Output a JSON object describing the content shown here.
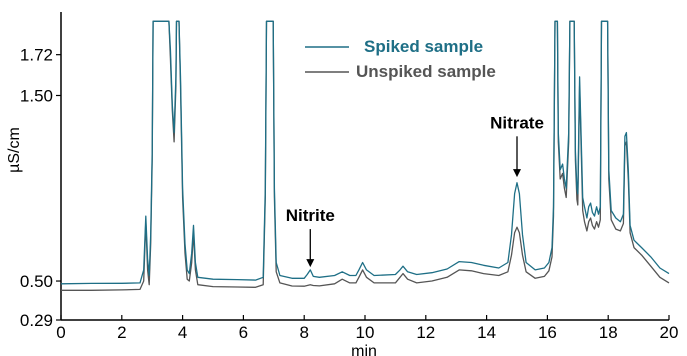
{
  "chart_data": {
    "type": "line",
    "title": "",
    "xlabel": "min",
    "ylabel": "µS/cm",
    "xlim": [
      0,
      20
    ],
    "ylim": [
      0.29,
      1.95
    ],
    "x_ticks": [
      "0",
      "2",
      "4",
      "6",
      "8",
      "10",
      "12",
      "14",
      "16",
      "18",
      "20"
    ],
    "y_ticks": [
      {
        "value": 0.29,
        "label": "0.29"
      },
      {
        "value": 0.5,
        "label": "0.50"
      },
      {
        "value": 1.5,
        "label": "1.50"
      },
      {
        "value": 1.72,
        "label": "1.72"
      }
    ],
    "grid": false,
    "legend_position": "top-center",
    "series": [
      {
        "name": "Spiked sample",
        "color": "#1e6f86",
        "points": [
          [
            0.0,
            0.485
          ],
          [
            1.0,
            0.487
          ],
          [
            2.0,
            0.488
          ],
          [
            2.6,
            0.49
          ],
          [
            2.72,
            0.56
          ],
          [
            2.79,
            0.85
          ],
          [
            2.85,
            0.62
          ],
          [
            2.9,
            0.53
          ],
          [
            2.95,
            0.75
          ],
          [
            3.0,
            1.2
          ],
          [
            3.03,
            1.9
          ],
          [
            3.55,
            1.9
          ],
          [
            3.6,
            1.75
          ],
          [
            3.66,
            1.45
          ],
          [
            3.72,
            1.3
          ],
          [
            3.78,
            1.6
          ],
          [
            3.8,
            1.9
          ],
          [
            3.88,
            1.9
          ],
          [
            3.93,
            1.6
          ],
          [
            4.0,
            1.0
          ],
          [
            4.08,
            0.7
          ],
          [
            4.15,
            0.56
          ],
          [
            4.22,
            0.54
          ],
          [
            4.3,
            0.65
          ],
          [
            4.36,
            0.8
          ],
          [
            4.42,
            0.6
          ],
          [
            4.5,
            0.52
          ],
          [
            5.0,
            0.51
          ],
          [
            5.8,
            0.508
          ],
          [
            6.4,
            0.505
          ],
          [
            6.65,
            0.52
          ],
          [
            6.72,
            1.0
          ],
          [
            6.76,
            1.9
          ],
          [
            6.98,
            1.9
          ],
          [
            7.02,
            1.0
          ],
          [
            7.08,
            0.6
          ],
          [
            7.2,
            0.53
          ],
          [
            7.6,
            0.515
          ],
          [
            8.0,
            0.515
          ],
          [
            8.1,
            0.535
          ],
          [
            8.2,
            0.56
          ],
          [
            8.3,
            0.525
          ],
          [
            8.5,
            0.52
          ],
          [
            9.0,
            0.53
          ],
          [
            9.25,
            0.55
          ],
          [
            9.5,
            0.53
          ],
          [
            9.7,
            0.53
          ],
          [
            9.8,
            0.56
          ],
          [
            9.92,
            0.6
          ],
          [
            10.05,
            0.56
          ],
          [
            10.3,
            0.53
          ],
          [
            11.0,
            0.535
          ],
          [
            11.15,
            0.56
          ],
          [
            11.25,
            0.58
          ],
          [
            11.4,
            0.55
          ],
          [
            11.7,
            0.535
          ],
          [
            12.2,
            0.545
          ],
          [
            12.7,
            0.565
          ],
          [
            13.1,
            0.605
          ],
          [
            13.5,
            0.6
          ],
          [
            13.9,
            0.585
          ],
          [
            14.4,
            0.57
          ],
          [
            14.7,
            0.6
          ],
          [
            14.82,
            0.75
          ],
          [
            14.92,
            0.97
          ],
          [
            15.0,
            1.03
          ],
          [
            15.08,
            0.97
          ],
          [
            15.18,
            0.75
          ],
          [
            15.3,
            0.6
          ],
          [
            15.6,
            0.56
          ],
          [
            15.9,
            0.57
          ],
          [
            16.05,
            0.6
          ],
          [
            16.15,
            0.68
          ],
          [
            16.2,
            0.9
          ],
          [
            16.25,
            1.9
          ],
          [
            16.33,
            1.9
          ],
          [
            16.36,
            1.3
          ],
          [
            16.42,
            1.1
          ],
          [
            16.5,
            1.13
          ],
          [
            16.56,
            1.05
          ],
          [
            16.62,
            1.0
          ],
          [
            16.7,
            1.3
          ],
          [
            16.74,
            1.9
          ],
          [
            16.88,
            1.9
          ],
          [
            16.92,
            1.2
          ],
          [
            16.97,
            1.0
          ],
          [
            17.0,
            0.97
          ],
          [
            17.06,
            1.6
          ],
          [
            17.1,
            1.35
          ],
          [
            17.16,
            0.95
          ],
          [
            17.22,
            0.9
          ],
          [
            17.3,
            0.84
          ],
          [
            17.36,
            0.9
          ],
          [
            17.42,
            0.92
          ],
          [
            17.48,
            0.87
          ],
          [
            17.55,
            0.85
          ],
          [
            17.62,
            0.9
          ],
          [
            17.68,
            0.86
          ],
          [
            17.74,
            0.9
          ],
          [
            17.78,
            1.9
          ],
          [
            17.98,
            1.9
          ],
          [
            18.02,
            1.1
          ],
          [
            18.1,
            0.88
          ],
          [
            18.25,
            0.84
          ],
          [
            18.4,
            0.82
          ],
          [
            18.5,
            0.86
          ],
          [
            18.55,
            1.28
          ],
          [
            18.6,
            1.3
          ],
          [
            18.66,
            1.1
          ],
          [
            18.72,
            0.8
          ],
          [
            18.85,
            0.72
          ],
          [
            19.1,
            0.68
          ],
          [
            19.4,
            0.63
          ],
          [
            19.7,
            0.57
          ],
          [
            20.0,
            0.54
          ]
        ]
      },
      {
        "name": "Unspiked sample",
        "color": "#555555",
        "points": [
          [
            0.0,
            0.45
          ],
          [
            1.0,
            0.45
          ],
          [
            2.0,
            0.452
          ],
          [
            2.6,
            0.455
          ],
          [
            2.72,
            0.5
          ],
          [
            2.79,
            0.82
          ],
          [
            2.85,
            0.56
          ],
          [
            2.9,
            0.48
          ],
          [
            2.95,
            0.7
          ],
          [
            3.0,
            1.15
          ],
          [
            3.03,
            1.9
          ],
          [
            3.55,
            1.9
          ],
          [
            3.6,
            1.7
          ],
          [
            3.66,
            1.42
          ],
          [
            3.72,
            1.25
          ],
          [
            3.78,
            1.55
          ],
          [
            3.8,
            1.9
          ],
          [
            3.88,
            1.9
          ],
          [
            3.93,
            1.55
          ],
          [
            4.0,
            0.95
          ],
          [
            4.08,
            0.65
          ],
          [
            4.15,
            0.51
          ],
          [
            4.22,
            0.5
          ],
          [
            4.3,
            0.6
          ],
          [
            4.36,
            0.76
          ],
          [
            4.42,
            0.56
          ],
          [
            4.5,
            0.48
          ],
          [
            5.0,
            0.47
          ],
          [
            5.8,
            0.468
          ],
          [
            6.4,
            0.466
          ],
          [
            6.65,
            0.48
          ],
          [
            6.72,
            0.95
          ],
          [
            6.76,
            1.9
          ],
          [
            6.98,
            1.9
          ],
          [
            7.02,
            0.95
          ],
          [
            7.08,
            0.55
          ],
          [
            7.2,
            0.49
          ],
          [
            7.6,
            0.473
          ],
          [
            8.0,
            0.472
          ],
          [
            8.1,
            0.476
          ],
          [
            8.2,
            0.48
          ],
          [
            8.3,
            0.476
          ],
          [
            8.5,
            0.474
          ],
          [
            9.0,
            0.485
          ],
          [
            9.25,
            0.51
          ],
          [
            9.5,
            0.49
          ],
          [
            9.7,
            0.49
          ],
          [
            9.8,
            0.52
          ],
          [
            9.92,
            0.56
          ],
          [
            10.05,
            0.52
          ],
          [
            10.3,
            0.49
          ],
          [
            11.0,
            0.49
          ],
          [
            11.15,
            0.52
          ],
          [
            11.25,
            0.54
          ],
          [
            11.4,
            0.51
          ],
          [
            11.7,
            0.49
          ],
          [
            12.2,
            0.5
          ],
          [
            12.7,
            0.52
          ],
          [
            13.1,
            0.56
          ],
          [
            13.5,
            0.555
          ],
          [
            13.9,
            0.54
          ],
          [
            14.4,
            0.53
          ],
          [
            14.7,
            0.55
          ],
          [
            14.82,
            0.64
          ],
          [
            14.92,
            0.76
          ],
          [
            15.0,
            0.79
          ],
          [
            15.08,
            0.76
          ],
          [
            15.18,
            0.64
          ],
          [
            15.3,
            0.55
          ],
          [
            15.6,
            0.515
          ],
          [
            15.9,
            0.525
          ],
          [
            16.05,
            0.555
          ],
          [
            16.15,
            0.63
          ],
          [
            16.2,
            0.85
          ],
          [
            16.25,
            1.9
          ],
          [
            16.33,
            1.9
          ],
          [
            16.36,
            1.25
          ],
          [
            16.42,
            1.05
          ],
          [
            16.5,
            1.08
          ],
          [
            16.56,
            1.0
          ],
          [
            16.62,
            0.95
          ],
          [
            16.7,
            1.25
          ],
          [
            16.74,
            1.9
          ],
          [
            16.88,
            1.9
          ],
          [
            16.92,
            1.15
          ],
          [
            16.97,
            0.94
          ],
          [
            17.0,
            0.91
          ],
          [
            17.06,
            1.55
          ],
          [
            17.1,
            1.3
          ],
          [
            17.16,
            0.88
          ],
          [
            17.22,
            0.82
          ],
          [
            17.3,
            0.77
          ],
          [
            17.36,
            0.82
          ],
          [
            17.42,
            0.84
          ],
          [
            17.48,
            0.8
          ],
          [
            17.55,
            0.78
          ],
          [
            17.62,
            0.82
          ],
          [
            17.68,
            0.79
          ],
          [
            17.74,
            0.83
          ],
          [
            17.78,
            1.9
          ],
          [
            17.98,
            1.9
          ],
          [
            18.02,
            1.05
          ],
          [
            18.1,
            0.83
          ],
          [
            18.25,
            0.78
          ],
          [
            18.4,
            0.77
          ],
          [
            18.5,
            0.81
          ],
          [
            18.55,
            1.23
          ],
          [
            18.6,
            1.25
          ],
          [
            18.66,
            1.05
          ],
          [
            18.72,
            0.76
          ],
          [
            18.85,
            0.68
          ],
          [
            19.1,
            0.64
          ],
          [
            19.4,
            0.58
          ],
          [
            19.7,
            0.52
          ],
          [
            20.0,
            0.49
          ]
        ]
      }
    ],
    "annotations": [
      {
        "text": "Nitrite",
        "x": 8.2,
        "arrow_from_y": 0.78,
        "arrow_to_y": 0.575
      },
      {
        "text": "Nitrate",
        "x": 15.0,
        "arrow_from_y": 1.28,
        "arrow_to_y": 1.06
      }
    ]
  }
}
